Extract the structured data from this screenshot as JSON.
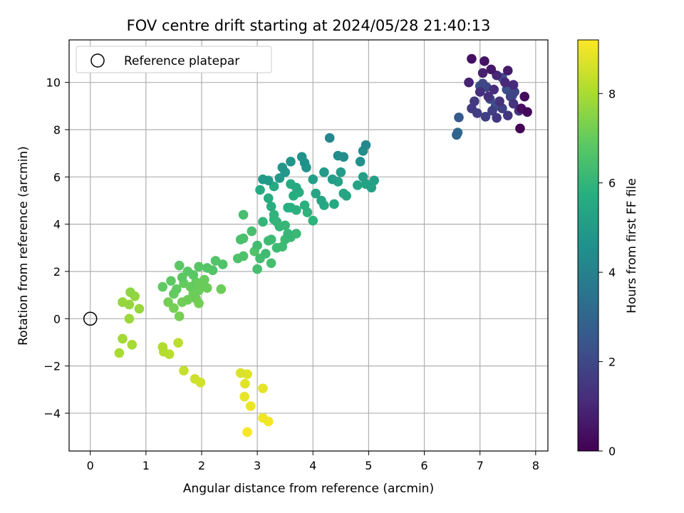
{
  "chart_data": {
    "type": "scatter",
    "title": "FOV centre drift starting at 2024/05/28 21:40:13",
    "xlabel": "Angular distance from reference (arcmin)",
    "ylabel": "Rotation from reference (arcmin)",
    "xlim": [
      -0.38,
      8.22
    ],
    "ylim": [
      -5.6,
      11.8
    ],
    "x_ticks": [
      0,
      1,
      2,
      3,
      4,
      5,
      6,
      7,
      8
    ],
    "y_ticks": [
      -4,
      -2,
      0,
      2,
      4,
      6,
      8,
      10
    ],
    "grid": true,
    "legend": {
      "placement": "top-left",
      "entries": [
        "Reference platepar"
      ]
    },
    "reference_point": {
      "x": 0,
      "y": 0
    },
    "colorbar": {
      "label": "Hours from first FF file",
      "range": [
        0,
        9.2
      ],
      "ticks": [
        0,
        2,
        4,
        6,
        8
      ],
      "colormap": "viridis"
    },
    "points": [
      [
        7.72,
        8.05,
        0.1
      ],
      [
        7.85,
        8.75,
        0.2
      ],
      [
        7.8,
        9.4,
        0.3
      ],
      [
        7.74,
        8.9,
        0.35
      ],
      [
        6.85,
        11.0,
        0.4
      ],
      [
        7.08,
        10.9,
        0.5
      ],
      [
        7.2,
        10.55,
        0.6
      ],
      [
        7.5,
        10.5,
        0.7
      ],
      [
        7.05,
        10.4,
        0.8
      ],
      [
        6.8,
        10.0,
        0.9
      ],
      [
        7.3,
        10.3,
        1.0
      ],
      [
        7.45,
        10.0,
        1.05
      ],
      [
        7.6,
        9.9,
        1.1
      ],
      [
        7.25,
        9.7,
        1.15
      ],
      [
        7.0,
        9.6,
        1.2
      ],
      [
        7.15,
        9.4,
        1.25
      ],
      [
        7.35,
        9.2,
        1.3
      ],
      [
        7.6,
        9.1,
        1.35
      ],
      [
        7.7,
        8.8,
        1.4
      ],
      [
        7.5,
        8.6,
        1.45
      ],
      [
        7.3,
        8.5,
        1.5
      ],
      [
        6.9,
        9.2,
        1.55
      ],
      [
        6.85,
        8.9,
        1.6
      ],
      [
        6.95,
        8.7,
        1.65
      ],
      [
        7.1,
        8.55,
        1.7
      ],
      [
        7.22,
        8.8,
        1.75
      ],
      [
        7.4,
        8.9,
        1.8
      ],
      [
        7.55,
        9.4,
        1.85
      ],
      [
        7.62,
        9.6,
        1.9
      ],
      [
        7.05,
        9.95,
        1.95
      ],
      [
        7.12,
        9.8,
        2.0
      ],
      [
        7.4,
        10.2,
        2.05
      ],
      [
        7.28,
        9.0,
        2.1
      ],
      [
        7.18,
        9.3,
        2.15
      ],
      [
        7.48,
        9.7,
        2.2
      ],
      [
        7.58,
        9.45,
        2.3
      ],
      [
        7.0,
        9.85,
        2.4
      ],
      [
        6.62,
        8.52,
        2.6
      ],
      [
        6.58,
        7.78,
        3.0
      ],
      [
        6.6,
        7.88,
        3.2
      ],
      [
        4.3,
        7.65,
        4.2
      ],
      [
        4.95,
        7.35,
        4.3
      ],
      [
        4.9,
        7.1,
        4.4
      ],
      [
        4.45,
        6.9,
        4.5
      ],
      [
        4.55,
        6.85,
        4.5
      ],
      [
        4.85,
        6.65,
        4.6
      ],
      [
        3.8,
        6.85,
        4.6
      ],
      [
        3.85,
        6.6,
        4.65
      ],
      [
        3.88,
        6.4,
        4.7
      ],
      [
        3.6,
        6.65,
        4.75
      ],
      [
        3.45,
        6.4,
        4.8
      ],
      [
        3.5,
        6.2,
        4.85
      ],
      [
        3.4,
        5.95,
        4.9
      ],
      [
        3.1,
        5.9,
        4.95
      ],
      [
        3.2,
        5.85,
        5.0
      ],
      [
        4.2,
        6.2,
        5.0
      ],
      [
        4.5,
        6.2,
        5.05
      ],
      [
        4.35,
        5.9,
        5.1
      ],
      [
        4.0,
        5.9,
        5.1
      ],
      [
        4.9,
        6.0,
        5.15
      ],
      [
        5.1,
        5.85,
        5.2
      ],
      [
        5.05,
        5.55,
        5.25
      ],
      [
        4.95,
        5.7,
        5.3
      ],
      [
        4.8,
        5.65,
        5.3
      ],
      [
        4.45,
        5.8,
        5.3
      ],
      [
        4.05,
        5.3,
        5.35
      ],
      [
        4.15,
        5.0,
        5.4
      ],
      [
        4.55,
        5.3,
        5.45
      ],
      [
        4.6,
        5.2,
        5.45
      ],
      [
        4.2,
        4.8,
        5.5
      ],
      [
        4.38,
        4.85,
        5.5
      ],
      [
        3.7,
        5.55,
        5.5
      ],
      [
        3.6,
        5.7,
        5.55
      ],
      [
        3.3,
        5.6,
        5.6
      ],
      [
        3.05,
        5.45,
        5.6
      ],
      [
        3.2,
        5.1,
        5.65
      ],
      [
        3.65,
        5.2,
        5.7
      ],
      [
        3.75,
        5.35,
        5.7
      ],
      [
        3.25,
        4.75,
        5.75
      ],
      [
        3.55,
        4.7,
        5.75
      ],
      [
        3.6,
        4.7,
        5.8
      ],
      [
        3.7,
        4.6,
        5.85
      ],
      [
        3.9,
        4.5,
        5.9
      ],
      [
        4.0,
        4.15,
        5.9
      ],
      [
        3.85,
        4.8,
        5.8
      ],
      [
        3.3,
        4.4,
        5.95
      ],
      [
        3.3,
        4.2,
        6.0
      ],
      [
        3.1,
        4.1,
        6.0
      ],
      [
        3.35,
        4.1,
        6.05
      ],
      [
        3.4,
        3.9,
        6.05
      ],
      [
        3.5,
        3.95,
        6.1
      ],
      [
        3.55,
        3.6,
        6.1
      ],
      [
        3.6,
        3.45,
        6.15
      ],
      [
        3.7,
        3.6,
        6.15
      ],
      [
        3.5,
        3.35,
        6.2
      ],
      [
        3.25,
        3.35,
        6.2
      ],
      [
        3.45,
        3.05,
        6.25
      ],
      [
        3.35,
        3.0,
        6.25
      ],
      [
        3.15,
        2.75,
        6.3
      ],
      [
        3.2,
        3.3,
        6.3
      ],
      [
        3.0,
        3.1,
        6.35
      ],
      [
        3.05,
        2.55,
        6.35
      ],
      [
        3.25,
        2.35,
        6.4
      ],
      [
        3.0,
        2.1,
        6.4
      ],
      [
        2.75,
        4.4,
        6.45
      ],
      [
        2.9,
        3.7,
        6.45
      ],
      [
        2.75,
        3.4,
        6.5
      ],
      [
        2.7,
        3.35,
        6.5
      ],
      [
        2.65,
        2.55,
        6.55
      ],
      [
        2.75,
        2.65,
        6.55
      ],
      [
        2.95,
        2.85,
        6.6
      ],
      [
        2.38,
        2.3,
        6.6
      ],
      [
        2.25,
        2.45,
        6.65
      ],
      [
        2.2,
        2.05,
        6.7
      ],
      [
        2.1,
        2.15,
        6.7
      ],
      [
        1.95,
        2.2,
        6.75
      ],
      [
        1.85,
        1.85,
        6.8
      ],
      [
        1.6,
        2.25,
        6.8
      ],
      [
        1.75,
        2.0,
        6.8
      ],
      [
        1.65,
        1.75,
        6.85
      ],
      [
        1.45,
        1.6,
        6.85
      ],
      [
        1.3,
        1.35,
        6.9
      ],
      [
        1.55,
        1.25,
        6.95
      ],
      [
        1.5,
        1.05,
        6.95
      ],
      [
        1.68,
        1.5,
        7.0
      ],
      [
        1.8,
        1.35,
        7.0
      ],
      [
        1.9,
        1.55,
        7.05
      ],
      [
        2.05,
        1.65,
        7.05
      ],
      [
        2.0,
        1.45,
        7.05
      ],
      [
        2.1,
        1.3,
        7.1
      ],
      [
        1.95,
        1.2,
        7.1
      ],
      [
        1.85,
        1.05,
        7.1
      ],
      [
        2.35,
        1.25,
        7.1
      ],
      [
        1.75,
        0.8,
        7.15
      ],
      [
        1.65,
        0.7,
        7.15
      ],
      [
        1.9,
        0.85,
        7.15
      ],
      [
        1.95,
        0.65,
        7.2
      ],
      [
        1.4,
        0.7,
        7.2
      ],
      [
        1.5,
        0.45,
        7.2
      ],
      [
        1.6,
        0.1,
        7.25
      ],
      [
        0.72,
        1.12,
        7.6
      ],
      [
        0.8,
        0.95,
        7.65
      ],
      [
        0.58,
        0.7,
        7.7
      ],
      [
        0.7,
        0.6,
        7.7
      ],
      [
        0.88,
        0.42,
        7.75
      ],
      [
        0.7,
        0.0,
        7.8
      ],
      [
        0.58,
        -0.85,
        7.9
      ],
      [
        0.75,
        -1.1,
        7.95
      ],
      [
        0.52,
        -1.45,
        8.0
      ],
      [
        1.3,
        -1.2,
        8.1
      ],
      [
        1.32,
        -1.4,
        8.15
      ],
      [
        1.42,
        -1.5,
        8.2
      ],
      [
        1.58,
        -1.02,
        8.25
      ],
      [
        1.68,
        -2.2,
        8.4
      ],
      [
        1.88,
        -2.55,
        8.5
      ],
      [
        1.98,
        -2.7,
        8.55
      ],
      [
        2.7,
        -2.3,
        8.7
      ],
      [
        2.82,
        -2.35,
        8.75
      ],
      [
        2.78,
        -2.75,
        8.8
      ],
      [
        3.1,
        -2.95,
        8.85
      ],
      [
        2.77,
        -3.3,
        8.9
      ],
      [
        2.88,
        -3.7,
        8.95
      ],
      [
        3.1,
        -4.2,
        9.0
      ],
      [
        3.2,
        -4.35,
        9.05
      ],
      [
        2.82,
        -4.8,
        9.1
      ]
    ]
  }
}
